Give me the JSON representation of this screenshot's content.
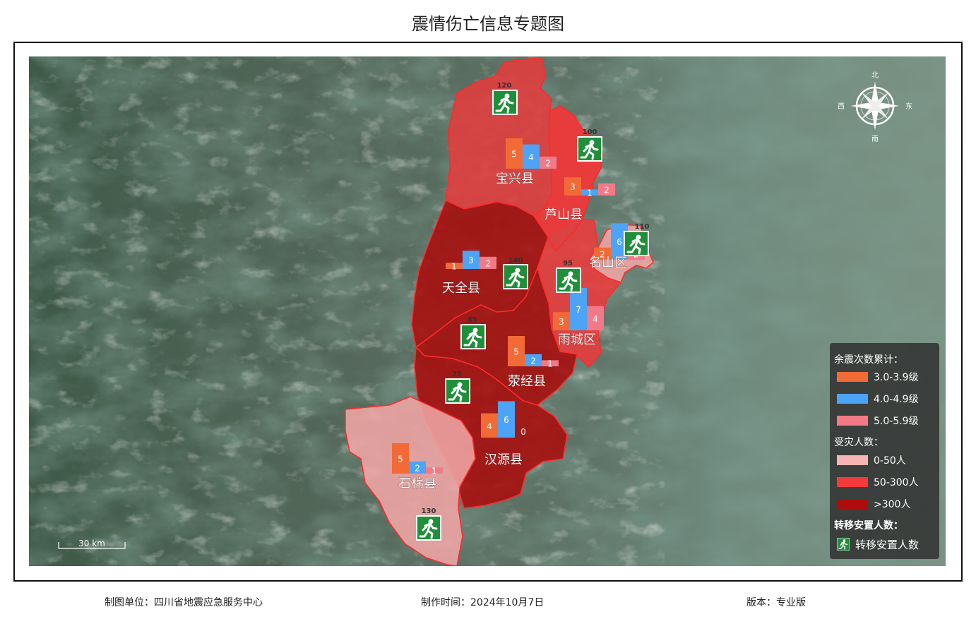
{
  "title": "震情伤亡信息专题图",
  "counties": [
    {
      "name": "宝兴县",
      "class": ">300人",
      "fill": "#e23c3c",
      "relocated": "120",
      "aftershocks": [
        "5",
        "4",
        "2"
      ],
      "aftershock_values": [
        5,
        4,
        2
      ]
    },
    {
      "name": "芦山县",
      "class": "50-300人",
      "fill": "#ea3b3b",
      "relocated": "100",
      "aftershocks": [
        "3",
        "1",
        "2"
      ],
      "aftershock_values": [
        3,
        1,
        2
      ]
    },
    {
      "name": "名山区",
      "class": "0-50人",
      "fill": "#f0a5a5",
      "relocated": "110",
      "aftershocks": [
        "2",
        "6",
        "2"
      ],
      "aftershock_values": [
        2,
        6,
        2
      ]
    },
    {
      "name": "天全县",
      "class": ">300人",
      "fill": "#a80c0c",
      "relocated": "140",
      "aftershocks": [
        "1",
        "3",
        "2"
      ],
      "aftershock_values": [
        1,
        3,
        2
      ]
    },
    {
      "name": "雨城区",
      "class": "50-300人",
      "fill": "#ea3b3b",
      "relocated": "95",
      "aftershocks": [
        "3",
        "7",
        "4"
      ],
      "aftershock_values": [
        3,
        7,
        4
      ]
    },
    {
      "name": "荥经县",
      "class": ">300人",
      "fill": "#a80c0c",
      "relocated": "85",
      "aftershocks": [
        "5",
        "2",
        "1"
      ],
      "aftershock_values": [
        5,
        2,
        1
      ]
    },
    {
      "name": "汉源县",
      "class": ">300人",
      "fill": "#a80c0c",
      "relocated": "75",
      "aftershocks": [
        "4",
        "6",
        "0"
      ],
      "aftershock_values": [
        4,
        6,
        0
      ]
    },
    {
      "name": "石棉县",
      "class": "0-50人",
      "fill": "#f0a5a5",
      "relocated": "130",
      "aftershocks": [
        "5",
        "2",
        "1"
      ],
      "aftershock_values": [
        5,
        2,
        1
      ]
    }
  ],
  "compass": {
    "north": "北",
    "south": "南",
    "east": "东",
    "west": "西"
  },
  "scale_label": "30 km",
  "legend": {
    "aftershock_title": "余震次数累计：",
    "aftershock_items": [
      {
        "label": "3.0-3.9级",
        "color": "#f26a36"
      },
      {
        "label": "4.0-4.9级",
        "color": "#4da3f5"
      },
      {
        "label": "5.0-5.9级",
        "color": "#f27a86"
      }
    ],
    "affected_title": "受灾人数：",
    "affected_items": [
      {
        "label": "0-50人",
        "color": "#f5b5b5"
      },
      {
        "label": "50-300人",
        "color": "#f23a3a"
      },
      {
        "label": ">300人",
        "color": "#b10c0c"
      }
    ],
    "relocation_title": "转移安置人数：",
    "relocation_item": "转移安置人数",
    "relocation_icon": "running-person-icon"
  },
  "footer": {
    "unit": "制图单位：四川省地震应急服务中心",
    "time": "制作时间：2024年10月7日",
    "version": "版本：专业版"
  }
}
